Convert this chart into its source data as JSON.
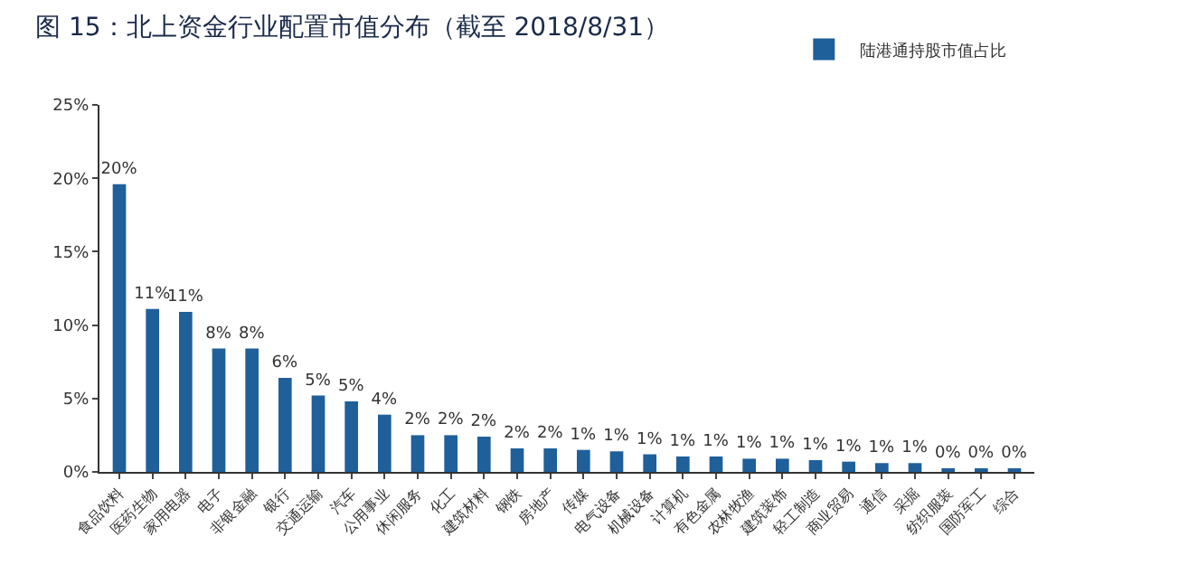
{
  "chart_data": {
    "type": "bar",
    "title": "图 15：北上资金行业配置市值分布（截至 2018/8/31）",
    "categories": [
      "食品饮料",
      "医药生物",
      "家用电器",
      "电子",
      "非银金融",
      "银行",
      "交通运输",
      "汽车",
      "公用事业",
      "休闲服务",
      "化工",
      "建筑材料",
      "钢铁",
      "房地产",
      "传媒",
      "电气设备",
      "机械设备",
      "计算机",
      "有色金属",
      "农林牧渔",
      "建筑装饰",
      "轻工制造",
      "商业贸易",
      "通信",
      "采掘",
      "纺织服装",
      "国防军工",
      "综合"
    ],
    "series": [
      {
        "name": "陆港通持股市值占比",
        "color": "#1f5f9a",
        "values": [
          19.6,
          11.1,
          10.9,
          8.4,
          8.4,
          6.4,
          5.2,
          4.8,
          3.9,
          2.5,
          2.5,
          2.4,
          1.6,
          1.6,
          1.5,
          1.4,
          1.2,
          1.05,
          1.05,
          0.9,
          0.9,
          0.8,
          0.7,
          0.6,
          0.6,
          0.25,
          0.2,
          0.2
        ],
        "value_labels": [
          "20%",
          "11%",
          "11%",
          "8%",
          "8%",
          "6%",
          "5%",
          "5%",
          "4%",
          "2%",
          "2%",
          "2%",
          "2%",
          "2%",
          "1%",
          "1%",
          "1%",
          "1%",
          "1%",
          "1%",
          "1%",
          "1%",
          "1%",
          "1%",
          "1%",
          "0%",
          "0%",
          "0%"
        ]
      }
    ],
    "ylim": [
      0,
      25
    ],
    "yticks": [
      {
        "value": 0,
        "label": "0%"
      },
      {
        "value": 5,
        "label": "5%"
      },
      {
        "value": 10,
        "label": "10%"
      },
      {
        "value": 15,
        "label": "15%"
      },
      {
        "value": 20,
        "label": "20%"
      },
      {
        "value": 25,
        "label": "25%"
      }
    ],
    "grid": false,
    "legend": "top right"
  }
}
